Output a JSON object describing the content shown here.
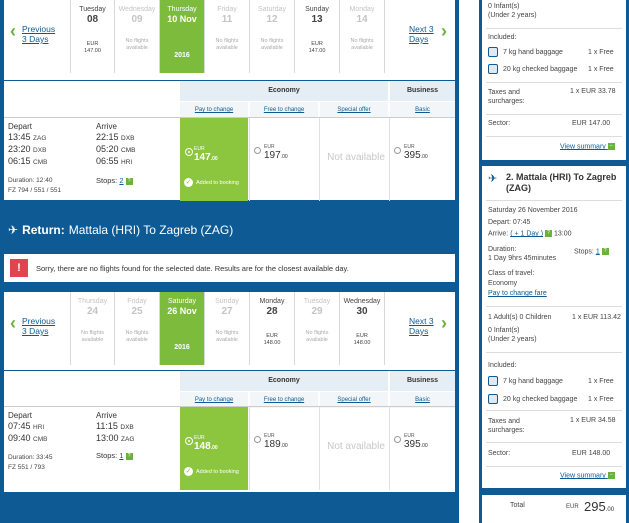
{
  "outbound": {
    "prev": "Previous 3 Days",
    "next": "Next 3 Days",
    "days": [
      {
        "name": "Tuesday",
        "date": "08",
        "cur": "EUR",
        "price": "147.00",
        "state": "normal"
      },
      {
        "name": "Wednesday",
        "date": "09",
        "note": "No flights available",
        "state": "off"
      },
      {
        "name": "Thursday",
        "date": "10 Nov",
        "year": "2016",
        "state": "sel"
      },
      {
        "name": "Friday",
        "date": "11",
        "note": "No flights available",
        "state": "off"
      },
      {
        "name": "Saturday",
        "date": "12",
        "note": "No flights available",
        "state": "off"
      },
      {
        "name": "Sunday",
        "date": "13",
        "cur": "EUR",
        "price": "147.00",
        "state": "normal"
      },
      {
        "name": "Monday",
        "date": "14",
        "note": "No flights available",
        "state": "off"
      }
    ],
    "economy": "Economy",
    "business": "Business",
    "sub": {
      "pay": "Pay to change",
      "free": "Free to change",
      "special": "Special offer",
      "basic": "Basic"
    },
    "depart_label": "Depart",
    "arrive_label": "Arrive",
    "dep_times": [
      "13:45",
      "23:20",
      "06:15"
    ],
    "dep_codes": [
      "ZAG",
      "DXB",
      "CMB"
    ],
    "arr_times": [
      "22:15",
      "05:20",
      "06:55"
    ],
    "arr_codes": [
      "DXB",
      "CMB",
      "HRI"
    ],
    "duration": "Duration: 12:40",
    "flight_no": "FZ 794 / 551 / 551",
    "stops_label": "Stops:",
    "stops": "2",
    "fare1_cur": "EUR",
    "fare1_amt": "147",
    "fare1_dec": ".00",
    "added": "Added to booking",
    "fare2_cur": "EUR",
    "fare2_amt": "197",
    "fare2_dec": ".00",
    "not_available": "Not available",
    "fare4_cur": "EUR",
    "fare4_amt": "395",
    "fare4_dec": ".00"
  },
  "return_title_label": "Return:",
  "return_title": "Mattala (HRI) To Zagreb (ZAG)",
  "notice": "Sorry, there are no flights found for the selected date. Results are for the closest available day.",
  "inbound": {
    "prev": "Previous 3 Days",
    "next": "Next 3 Days",
    "days": [
      {
        "name": "Thursday",
        "date": "24",
        "note": "No flights available",
        "state": "off"
      },
      {
        "name": "Friday",
        "date": "25",
        "note": "No flights available",
        "state": "off"
      },
      {
        "name": "Saturday",
        "date": "26 Nov",
        "year": "2016",
        "state": "sel"
      },
      {
        "name": "Sunday",
        "date": "27",
        "note": "No flights available",
        "state": "off"
      },
      {
        "name": "Monday",
        "date": "28",
        "cur": "EUR",
        "price": "148.00",
        "state": "normal"
      },
      {
        "name": "Tuesday",
        "date": "29",
        "note": "No flights available",
        "state": "off"
      },
      {
        "name": "Wednesday",
        "date": "30",
        "cur": "EUR",
        "price": "148.00",
        "state": "normal"
      }
    ],
    "economy": "Economy",
    "business": "Business",
    "sub": {
      "pay": "Pay to change",
      "free": "Free to change",
      "special": "Special offer",
      "basic": "Basic"
    },
    "depart_label": "Depart",
    "arrive_label": "Arrive",
    "dep_times": [
      "07:45",
      "09:40"
    ],
    "dep_codes": [
      "HRI",
      "CMB"
    ],
    "arr_times": [
      "11:15",
      "13:00"
    ],
    "arr_codes": [
      "DXB",
      "ZAG"
    ],
    "duration": "Duration: 33:45",
    "flight_no": "FZ 551 / 793",
    "stops_label": "Stops:",
    "stops": "1",
    "fare1_cur": "EUR",
    "fare1_amt": "148",
    "fare1_dec": ".00",
    "added": "Added to booking",
    "fare2_cur": "EUR",
    "fare2_amt": "189",
    "fare2_dec": ".00",
    "not_available": "Not available",
    "fare4_cur": "EUR",
    "fare4_amt": "395",
    "fare4_dec": ".00"
  },
  "summary": {
    "infants1": "0 Infant(s)",
    "under2_1": "(Under 2 years)",
    "included1": "Included:",
    "hand1": "7 kg hand baggage",
    "hand1_qty": "1 x Free",
    "checked1": "20 kg checked baggage",
    "checked1_qty": "1 x Free",
    "taxes1": "Taxes and surcharges:",
    "taxes1_val": "1 x EUR 33.78",
    "sector1": "Sector:",
    "sector1_val": "EUR 147.00",
    "view1": "View summary",
    "leg2_title": "2. Mattala (HRI) To Zagreb (ZAG)",
    "leg2_date": "Saturday 26 November 2016",
    "depart": "Depart:",
    "depart_time": "07:45",
    "arrive": "Arrive:",
    "plus_day": "( + 1 Day )",
    "arrive_time": "13:00",
    "duration": "Duration:",
    "duration_val": "1 Day 9hrs 45minutes",
    "stops": "Stops:",
    "stops_val": "1",
    "class": "Class of travel:",
    "class_val": "Economy",
    "fare_type": "Pay to change fare",
    "pax": "1 Adult(s)  0 Children",
    "pax_price": "1 x  EUR 113.42",
    "infants2": "0 Infant(s)",
    "under2_2": "(Under 2 years)",
    "included2": "Included:",
    "hand2": "7 kg hand baggage",
    "hand2_qty": "1 x Free",
    "checked2": "20 kg checked baggage",
    "checked2_qty": "1 x Free",
    "taxes2": "Taxes and surcharges:",
    "taxes2_val": "1 x EUR 34.58",
    "sector2": "Sector:",
    "sector2_val": "EUR 148.00",
    "view2": "View summary",
    "total": "Total",
    "total_cur": "EUR",
    "total_amt": "295",
    "total_dec": ".00"
  }
}
